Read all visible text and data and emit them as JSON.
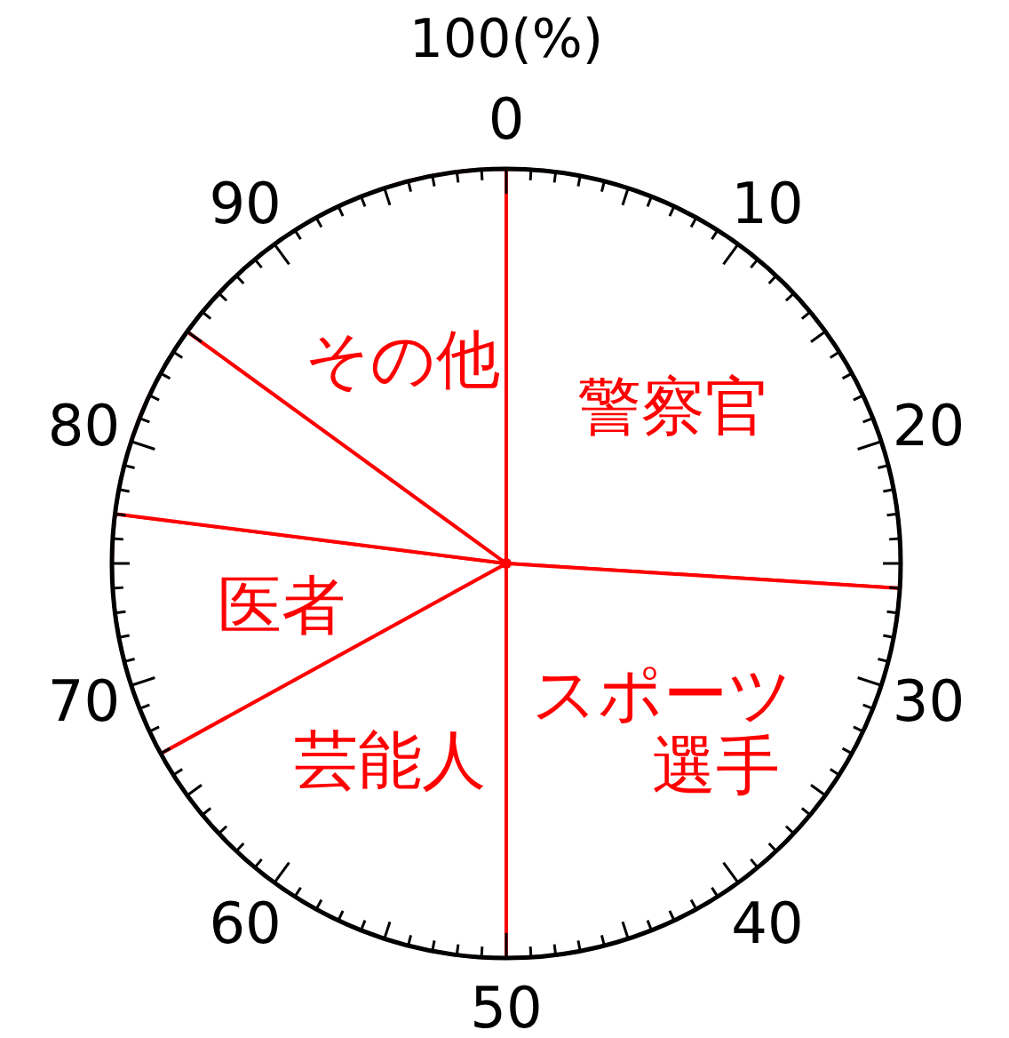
{
  "chart_data": {
    "type": "pie",
    "categories": [
      "警察官",
      "スポーツ選手",
      "芸能人",
      "医者",
      null,
      "その他"
    ],
    "values": [
      26,
      24,
      17,
      10,
      8,
      15
    ],
    "colors": [
      "#ffffff",
      "#ffffff",
      "#ffffff",
      "#ffffff",
      "#ffffff",
      "#ffffff"
    ],
    "annotations": [
      "100(%)",
      "0",
      "10",
      "20",
      "30",
      "40",
      "50",
      "60",
      "70",
      "80",
      "90"
    ]
  }
}
